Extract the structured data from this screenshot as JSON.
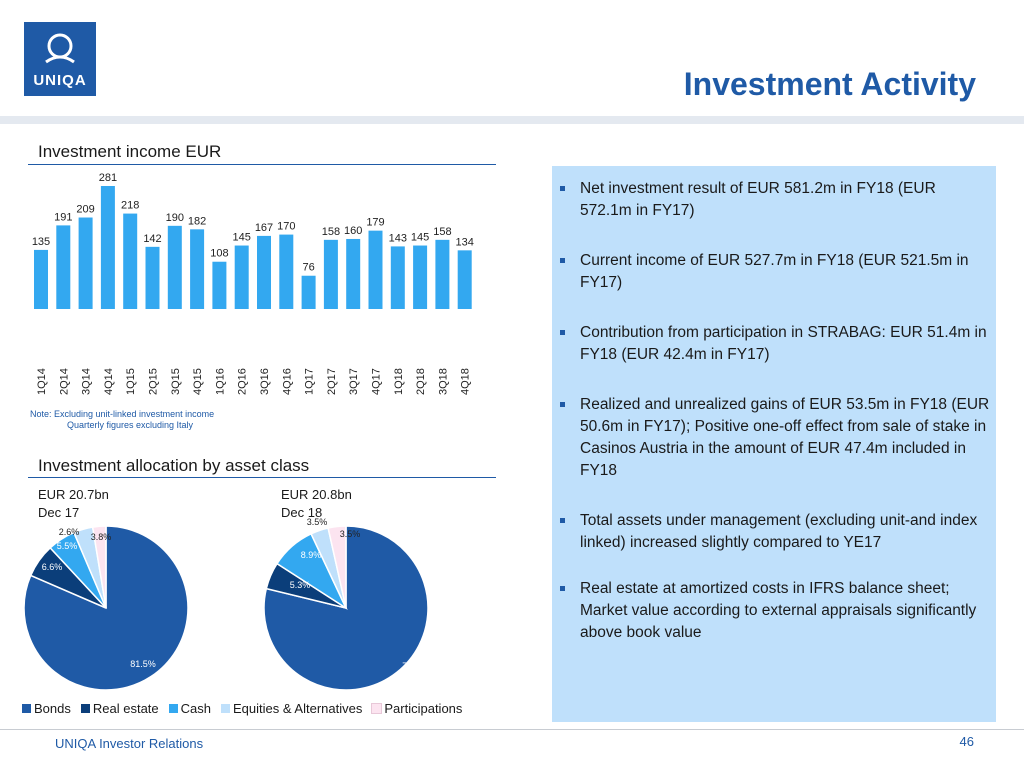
{
  "header": {
    "logo_text": "UNIQA",
    "title": "Investment Activity"
  },
  "bar_section": {
    "title": "Investment income EUR",
    "note_line1": "Note:  Excluding unit-linked investment income",
    "note_line2": "Quarterly figures excluding Italy"
  },
  "pie_section": {
    "title": "Investment allocation by asset class",
    "left_head1": "EUR 20.7bn",
    "left_head2": "Dec 17",
    "right_head1": "EUR 20.8bn",
    "right_head2": "Dec 18"
  },
  "chart_data": [
    {
      "type": "bar",
      "title": "Investment income EUR",
      "categories": [
        "1Q14",
        "2Q14",
        "3Q14",
        "4Q14",
        "1Q15",
        "2Q15",
        "3Q15",
        "4Q15",
        "1Q16",
        "2Q16",
        "3Q16",
        "4Q16",
        "1Q17",
        "2Q17",
        "3Q17",
        "4Q17",
        "1Q18",
        "2Q18",
        "3Q18",
        "4Q18"
      ],
      "values": [
        135,
        191,
        209,
        281,
        218,
        142,
        190,
        182,
        108,
        145,
        167,
        170,
        76,
        158,
        160,
        179,
        143,
        145,
        158,
        134
      ],
      "color": "#33a8f0"
    },
    {
      "type": "pie",
      "title": "Dec 17",
      "labels": [
        "Bonds",
        "Real estate",
        "Cash",
        "Equities & Alternatives",
        "Participations"
      ],
      "values": [
        81.5,
        6.6,
        5.5,
        3.8,
        2.6
      ],
      "value_labels": [
        "81.5%",
        "6.6%",
        "5.5%",
        "3.8%",
        "2.6%"
      ],
      "colors": [
        "#1f5aa6",
        "#0b3e7a",
        "#33a8f0",
        "#bfe0fb",
        "#fce4f0"
      ]
    },
    {
      "type": "pie",
      "title": "Dec 18",
      "labels": [
        "Bonds",
        "Real estate",
        "Cash",
        "Equities & Alternatives",
        "Participations"
      ],
      "values": [
        78.8,
        5.3,
        8.9,
        3.5,
        3.5
      ],
      "value_labels": [
        "78.8%",
        "5.3%",
        "8.9%",
        "3.5%",
        "3.5%"
      ],
      "colors": [
        "#1f5aa6",
        "#0b3e7a",
        "#33a8f0",
        "#bfe0fb",
        "#fce4f0"
      ]
    }
  ],
  "legend": [
    {
      "label": "Bonds",
      "color": "#1f5aa6"
    },
    {
      "label": "Real estate",
      "color": "#0b3e7a"
    },
    {
      "label": "Cash",
      "color": "#33a8f0"
    },
    {
      "label": "Equities & Alternatives",
      "color": "#bfe0fb"
    },
    {
      "label": "Participations",
      "color": "#fce4f0"
    }
  ],
  "bullets": [
    "Net investment result of EUR 581.2m in FY18 (EUR 572.1m in FY17)",
    "Current income of EUR 527.7m in FY18 (EUR 521.5m in FY17)",
    "Contribution from participation in STRABAG: EUR 51.4m in FY18 (EUR 42.4m in FY17)",
    "Realized and unrealized gains of EUR 53.5m in FY18 (EUR 50.6m in FY17); Positive one-off effect from sale of stake in Casinos Austria in the amount of EUR 47.4m included in FY18",
    "Total assets under management (excluding unit-and index linked) increased slightly compared to YE17",
    "Real estate at amortized costs in IFRS balance sheet; Market value according to external appraisals significantly above book value"
  ],
  "footer": {
    "left": "UNIQA Investor Relations",
    "page": "46"
  }
}
